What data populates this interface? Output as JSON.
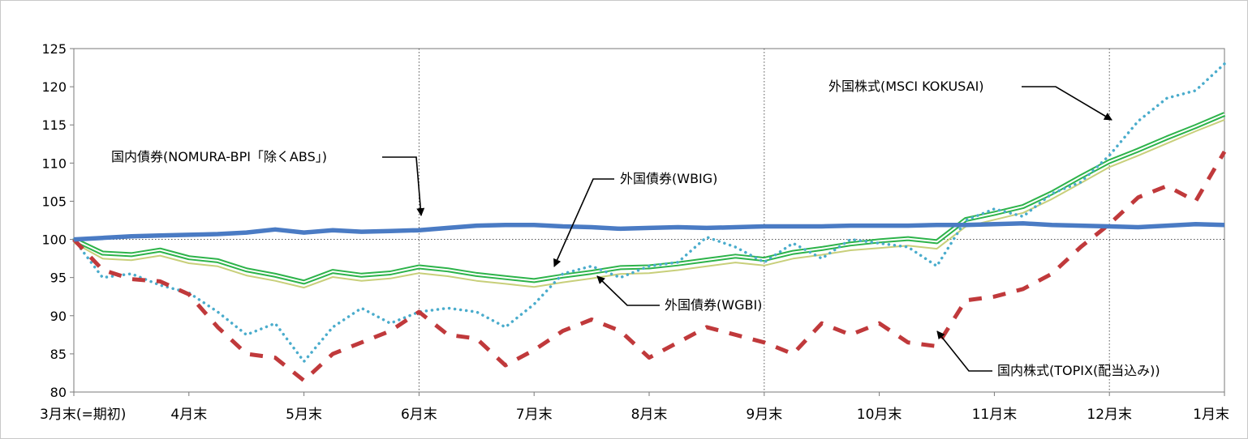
{
  "chart_data": {
    "type": "line",
    "title": "",
    "xlabel": "",
    "ylabel": "",
    "ylim": [
      80,
      125
    ],
    "yticks": [
      80,
      85,
      90,
      95,
      100,
      105,
      110,
      115,
      120,
      125
    ],
    "ytick_labels": [
      "80",
      "85",
      "90",
      "95",
      "100",
      "105",
      "110",
      "115",
      "120",
      "125"
    ],
    "x_range": [
      0,
      10
    ],
    "xtick_positions": [
      0,
      1,
      2,
      3,
      4,
      5,
      6,
      7,
      8,
      9,
      10
    ],
    "xtick_labels": [
      "3月末(=期初)",
      "4月末",
      "5月末",
      "6月末",
      "7月末",
      "8月末",
      "9月末",
      "10月末",
      "11月末",
      "12月末",
      "1月末"
    ],
    "vertical_dotted_lines_at": [
      3,
      6,
      9
    ],
    "reference_line_y": 100,
    "series": [
      {
        "name": "国内債券(NOMURA-BPI「除くABS」)",
        "style": "solid-thick",
        "color": "#4a7bc4",
        "x": [
          0,
          0.25,
          0.5,
          0.75,
          1,
          1.25,
          1.5,
          1.75,
          2,
          2.25,
          2.5,
          2.75,
          3,
          3.25,
          3.5,
          3.75,
          4,
          4.25,
          4.5,
          4.75,
          5,
          5.25,
          5.5,
          5.75,
          6,
          6.25,
          6.5,
          6.75,
          7,
          7.25,
          7.5,
          7.75,
          8,
          8.25,
          8.5,
          8.75,
          9,
          9.25,
          9.5,
          9.75,
          10
        ],
        "values": [
          100,
          100.2,
          100.4,
          100.5,
          100.6,
          100.7,
          100.9,
          101.3,
          100.9,
          101.2,
          101.0,
          101.1,
          101.2,
          101.5,
          101.8,
          101.9,
          101.9,
          101.7,
          101.6,
          101.4,
          101.5,
          101.6,
          101.5,
          101.6,
          101.7,
          101.7,
          101.7,
          101.8,
          101.8,
          101.8,
          101.9,
          101.9,
          102.0,
          102.1,
          101.9,
          101.8,
          101.7,
          101.6,
          101.8,
          102.0,
          101.9
        ]
      },
      {
        "name": "外国債券(WBIG)",
        "style": "double-green",
        "color": "#2db34a",
        "x": [
          0,
          0.25,
          0.5,
          0.75,
          1,
          1.25,
          1.5,
          1.75,
          2,
          2.25,
          2.5,
          2.75,
          3,
          3.25,
          3.5,
          3.75,
          4,
          4.25,
          4.5,
          4.75,
          5,
          5.25,
          5.5,
          5.75,
          6,
          6.25,
          6.5,
          6.75,
          7,
          7.25,
          7.5,
          7.75,
          8,
          8.25,
          8.5,
          8.75,
          9,
          9.25,
          9.5,
          9.75,
          10
        ],
        "values": [
          100,
          98.2,
          98.0,
          98.6,
          97.6,
          97.2,
          96.0,
          95.3,
          94.4,
          95.8,
          95.3,
          95.6,
          96.4,
          96.0,
          95.4,
          95.0,
          94.6,
          95.2,
          95.7,
          96.3,
          96.4,
          96.8,
          97.3,
          97.8,
          97.4,
          98.3,
          98.8,
          99.4,
          99.8,
          100.1,
          99.7,
          102.6,
          103.4,
          104.3,
          106.1,
          108.2,
          110.2,
          111.7,
          113.3,
          114.8,
          116.4
        ]
      },
      {
        "name": "外国債券(WGBI)",
        "style": "solid-thin",
        "color": "#c8cf7a",
        "x": [
          0,
          0.25,
          0.5,
          0.75,
          1,
          1.25,
          1.5,
          1.75,
          2,
          2.25,
          2.5,
          2.75,
          3,
          3.25,
          3.5,
          3.75,
          4,
          4.25,
          4.5,
          4.75,
          5,
          5.25,
          5.5,
          5.75,
          6,
          6.25,
          6.5,
          6.75,
          7,
          7.25,
          7.5,
          7.75,
          8,
          8.25,
          8.5,
          8.75,
          9,
          9.25,
          9.5,
          9.75,
          10
        ],
        "values": [
          100,
          97.9,
          97.7,
          98.3,
          97.3,
          96.9,
          95.7,
          95.0,
          94.1,
          95.5,
          95.0,
          95.3,
          96.0,
          95.6,
          95.0,
          94.6,
          94.2,
          94.8,
          95.3,
          95.9,
          96.0,
          96.4,
          96.9,
          97.4,
          97.0,
          97.9,
          98.4,
          99.0,
          99.3,
          99.6,
          99.2,
          102.1,
          103.0,
          103.9,
          105.7,
          107.8,
          109.9,
          111.4,
          113.0,
          114.6,
          116.1
        ]
      },
      {
        "name": "外国株式(MSCI KOKUSAI)",
        "style": "dotted",
        "color": "#4aaccc",
        "x": [
          0,
          0.25,
          0.5,
          0.75,
          1,
          1.25,
          1.5,
          1.75,
          2,
          2.25,
          2.5,
          2.75,
          3,
          3.25,
          3.5,
          3.75,
          4,
          4.25,
          4.5,
          4.75,
          5,
          5.25,
          5.5,
          5.75,
          6,
          6.25,
          6.5,
          6.75,
          7,
          7.25,
          7.5,
          7.75,
          8,
          8.25,
          8.5,
          8.75,
          9,
          9.25,
          9.5,
          9.75,
          10
        ],
        "values": [
          100,
          95.0,
          95.5,
          94.0,
          93.0,
          90.5,
          87.5,
          89.0,
          84.0,
          88.5,
          91.0,
          89.0,
          90.5,
          91.0,
          90.5,
          88.5,
          91.5,
          95.5,
          96.5,
          95.0,
          96.5,
          97.0,
          100.3,
          99.0,
          97.0,
          99.5,
          97.5,
          100.0,
          99.5,
          99.0,
          96.5,
          102.5,
          104.0,
          103.0,
          106.0,
          107.5,
          111.0,
          115.5,
          118.5,
          119.5,
          123.0
        ]
      },
      {
        "name": "国内株式(TOPIX(配当込み))",
        "style": "dashed-thick",
        "color": "#c0393b",
        "x": [
          0,
          0.25,
          0.5,
          0.75,
          1,
          1.25,
          1.5,
          1.75,
          2,
          2.25,
          2.5,
          2.75,
          3,
          3.25,
          3.5,
          3.75,
          4,
          4.25,
          4.5,
          4.75,
          5,
          5.25,
          5.5,
          5.75,
          6,
          6.25,
          6.5,
          6.75,
          7,
          7.25,
          7.5,
          7.75,
          8,
          8.25,
          8.5,
          8.75,
          9,
          9.25,
          9.5,
          9.75,
          10
        ],
        "values": [
          100,
          96.0,
          94.8,
          94.5,
          92.8,
          88.5,
          85.0,
          84.5,
          81.5,
          85.0,
          86.5,
          88.0,
          90.5,
          87.5,
          87.0,
          83.5,
          85.5,
          88.0,
          89.5,
          88.0,
          84.5,
          86.5,
          88.5,
          87.5,
          86.5,
          85.0,
          89.0,
          87.5,
          89.0,
          86.5,
          86.0,
          92.0,
          92.5,
          93.5,
          95.5,
          99.0,
          102.0,
          105.5,
          107.0,
          105.0,
          111.5
        ]
      }
    ],
    "annotations": [
      {
        "text": "国内債券(NOMURA-BPI「除くABS」)",
        "target": "国内債券(NOMURA-BPI「除くABS」)"
      },
      {
        "text": "外国債券(WBIG)",
        "target": "外国債券(WBIG)"
      },
      {
        "text": "外国債券(WGBI)",
        "target": "外国債券(WGBI)"
      },
      {
        "text": "外国株式(MSCI KOKUSAI)",
        "target": "外国株式(MSCI KOKUSAI)"
      },
      {
        "text": "国内株式(TOPIX(配当込み))",
        "target": "国内株式(TOPIX(配当込み))"
      }
    ],
    "grid": false,
    "legend": "none (inline annotations with arrows)"
  }
}
